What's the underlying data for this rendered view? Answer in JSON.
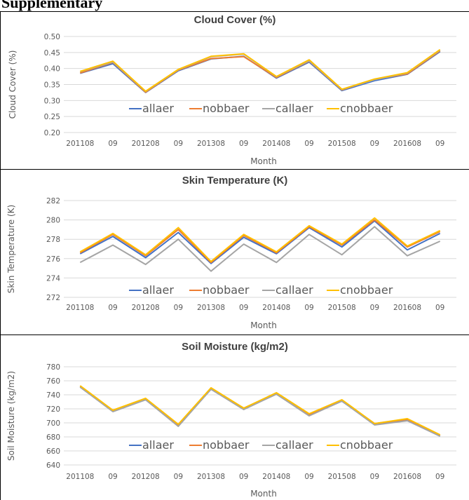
{
  "header": "Supplementary",
  "colors": {
    "allaer": "#4472c4",
    "nobbaer": "#ed7d31",
    "callaer": "#a5a5a5",
    "cnobbaer": "#ffc000"
  },
  "chart_data": [
    {
      "type": "line",
      "title": "Cloud Cover (%)",
      "xlabel": "Month",
      "ylabel": "Cloud Cover (%)",
      "ylim": [
        0.2,
        0.5
      ],
      "yticks": [
        "0.50",
        "0.45",
        "0.40",
        "0.35",
        "0.30",
        "0.25",
        "0.20"
      ],
      "categories": [
        "201108",
        "09",
        "201208",
        "09",
        "201308",
        "09",
        "201408",
        "09",
        "201508",
        "09",
        "201608",
        "09"
      ],
      "legend": "inside-bottom",
      "grid": true,
      "series": [
        {
          "name": "allaer",
          "values": [
            0.385,
            0.415,
            0.325,
            0.393,
            0.43,
            0.438,
            0.37,
            0.42,
            0.331,
            0.362,
            0.382,
            0.453
          ]
        },
        {
          "name": "nobbaer",
          "values": [
            0.386,
            0.419,
            0.326,
            0.395,
            0.431,
            0.437,
            0.372,
            0.423,
            0.333,
            0.366,
            0.383,
            0.455
          ]
        },
        {
          "name": "callaer",
          "values": [
            0.39,
            0.42,
            0.328,
            0.396,
            0.437,
            0.445,
            0.374,
            0.424,
            0.334,
            0.365,
            0.386,
            0.457
          ]
        },
        {
          "name": "cnobbaer",
          "values": [
            0.391,
            0.423,
            0.329,
            0.397,
            0.438,
            0.446,
            0.375,
            0.427,
            0.335,
            0.367,
            0.387,
            0.459
          ]
        }
      ]
    },
    {
      "type": "line",
      "title": "Skin Temperature (K)",
      "xlabel": "Month",
      "ylabel": "Skin Temperature (K)",
      "ylim": [
        272,
        282
      ],
      "yticks": [
        "282",
        "280",
        "278",
        "276",
        "274",
        "272"
      ],
      "categories": [
        "201108",
        "09",
        "201208",
        "09",
        "201308",
        "09",
        "201408",
        "09",
        "201508",
        "09",
        "201608",
        "09"
      ],
      "legend": "inside-bottom",
      "grid": true,
      "series": [
        {
          "name": "allaer",
          "values": [
            276.5,
            278.3,
            276.1,
            278.7,
            275.5,
            278.2,
            276.5,
            279.2,
            277.2,
            279.9,
            276.9,
            278.6
          ]
        },
        {
          "name": "nobbaer",
          "values": [
            276.6,
            278.5,
            276.3,
            279.0,
            275.6,
            278.4,
            276.6,
            279.3,
            277.4,
            280.0,
            277.2,
            278.8
          ]
        },
        {
          "name": "callaer",
          "values": [
            275.6,
            277.4,
            275.4,
            278.0,
            274.7,
            277.5,
            275.6,
            278.5,
            276.4,
            279.3,
            276.3,
            277.8
          ]
        },
        {
          "name": "cnobbaer",
          "values": [
            276.7,
            278.6,
            276.4,
            279.2,
            275.7,
            278.5,
            276.7,
            279.4,
            277.5,
            280.2,
            277.3,
            278.9
          ]
        }
      ]
    },
    {
      "type": "line",
      "title": "Soil Moisture (kg/m2)",
      "xlabel": "Month",
      "ylabel": "Soil Moisture (kg/m2)",
      "ylim": [
        640,
        780
      ],
      "yticks": [
        "780",
        "760",
        "740",
        "720",
        "700",
        "680",
        "660",
        "640"
      ],
      "categories": [
        "201108",
        "09",
        "201208",
        "09",
        "201308",
        "09",
        "201408",
        "09",
        "201508",
        "09",
        "201608",
        "09"
      ],
      "legend": "inside-bottom",
      "grid": true,
      "series": [
        {
          "name": "allaer",
          "values": [
            751,
            717,
            733,
            696,
            748,
            720,
            741,
            711,
            731,
            698,
            704,
            681
          ]
        },
        {
          "name": "nobbaer",
          "values": [
            752,
            718,
            734,
            697,
            749,
            721,
            742,
            712,
            732,
            699,
            705,
            682
          ]
        },
        {
          "name": "callaer",
          "values": [
            751,
            716,
            733,
            695,
            748,
            719,
            741,
            710,
            731,
            697,
            703,
            681
          ]
        },
        {
          "name": "cnobbaer",
          "values": [
            753,
            718,
            735,
            698,
            750,
            721,
            743,
            713,
            733,
            699,
            706,
            683
          ]
        }
      ]
    }
  ]
}
